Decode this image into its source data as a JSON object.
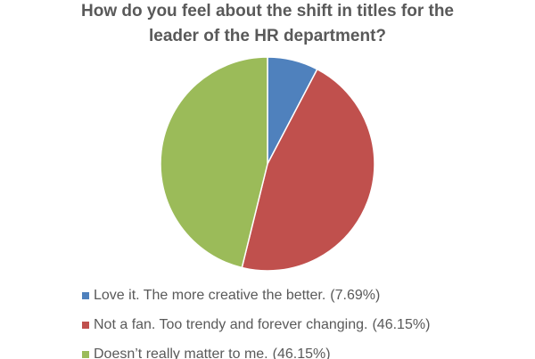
{
  "chart_data": {
    "type": "pie",
    "title": [
      "How do you feel about the shift in titles for the",
      "leader of the HR department?"
    ],
    "categories": [
      "Love it. The more creative the better.",
      "Not a fan. Too trendy and forever changing.",
      "Doesn’t really matter to me."
    ],
    "values": [
      7.69,
      46.15,
      46.15
    ],
    "value_labels": [
      "(7.69%)",
      "(46.15%)",
      "(46.15%)"
    ],
    "colors": [
      "#4f81bd",
      "#c0504d",
      "#9bbb59"
    ],
    "legend": "bottom"
  }
}
